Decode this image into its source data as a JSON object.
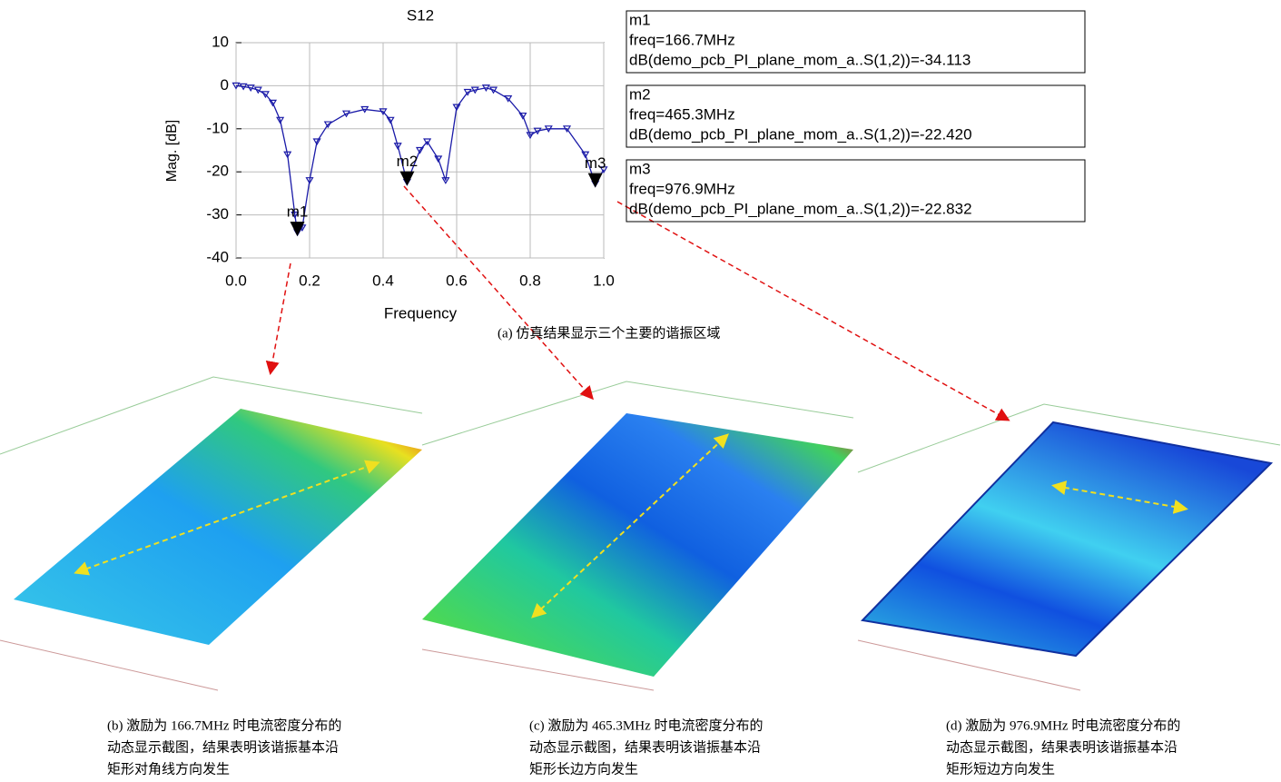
{
  "chart_data": {
    "type": "line",
    "title": "S12",
    "x_label": "Frequency",
    "y_label": "Mag. [dB]",
    "x": [
      0,
      0.02,
      0.04,
      0.06,
      0.08,
      0.1,
      0.12,
      0.14,
      0.16,
      0.167,
      0.18,
      0.2,
      0.22,
      0.25,
      0.3,
      0.35,
      0.4,
      0.42,
      0.44,
      0.465,
      0.5,
      0.52,
      0.55,
      0.57,
      0.6,
      0.63,
      0.65,
      0.68,
      0.7,
      0.74,
      0.78,
      0.8,
      0.82,
      0.85,
      0.9,
      0.95,
      0.977,
      1.0
    ],
    "values": [
      0,
      -0.2,
      -0.5,
      -1,
      -2,
      -4,
      -8,
      -16,
      -30,
      -34.1,
      -33,
      -22,
      -13,
      -9,
      -6.5,
      -5.5,
      -6,
      -8,
      -14,
      -22.4,
      -15,
      -13,
      -17,
      -22,
      -5,
      -1.5,
      -1,
      -0.5,
      -1,
      -3,
      -7,
      -11.5,
      -10.5,
      -10,
      -10,
      -16,
      -22.8,
      -19.5
    ],
    "color": "#1a1aa8",
    "xlim": [
      0,
      1
    ],
    "xticks": [
      {
        "value": 0,
        "label": "0.0"
      },
      0.2,
      0.4,
      0.6,
      0.8,
      {
        "value": 1,
        "label": "1.0"
      }
    ],
    "ylim": [
      -40,
      10
    ],
    "yticks": [
      -40,
      -30,
      -20,
      -10,
      0,
      10
    ],
    "grid": true,
    "markers": [
      {
        "name": "m1",
        "x": 0.1667,
        "y": -34.113,
        "freq_text": "freq=166.7MHz",
        "db_text": "dB(demo_pcb_PI_plane_mom_a..S(1,2))=-34.113"
      },
      {
        "name": "m2",
        "x": 0.4653,
        "y": -22.42,
        "freq_text": "freq=465.3MHz",
        "db_text": "dB(demo_pcb_PI_plane_mom_a..S(1,2))=-22.420"
      },
      {
        "name": "m3",
        "x": 0.9769,
        "y": -22.832,
        "freq_text": "freq=976.9MHz",
        "db_text": "dB(demo_pcb_PI_plane_mom_a..S(1,2))=-22.832"
      }
    ]
  },
  "captions": {
    "a": "(a) 仿真结果显示三个主要的谐振区域",
    "b": [
      "(b) 激励为 166.7MHz 时电流密度分布的",
      "动态显示截图，结果表明该谐振基本沿",
      "矩形对角线方向发生"
    ],
    "c": [
      "(c) 激励为 465.3MHz 时电流密度分布的",
      "动态显示截图，结果表明该谐振基本沿",
      "矩形长边方向发生"
    ],
    "d": [
      "(d) 激励为 976.9MHz 时电流密度分布的",
      "动态显示截图，结果表明该谐振基本沿",
      "矩形短边方向发生"
    ]
  }
}
